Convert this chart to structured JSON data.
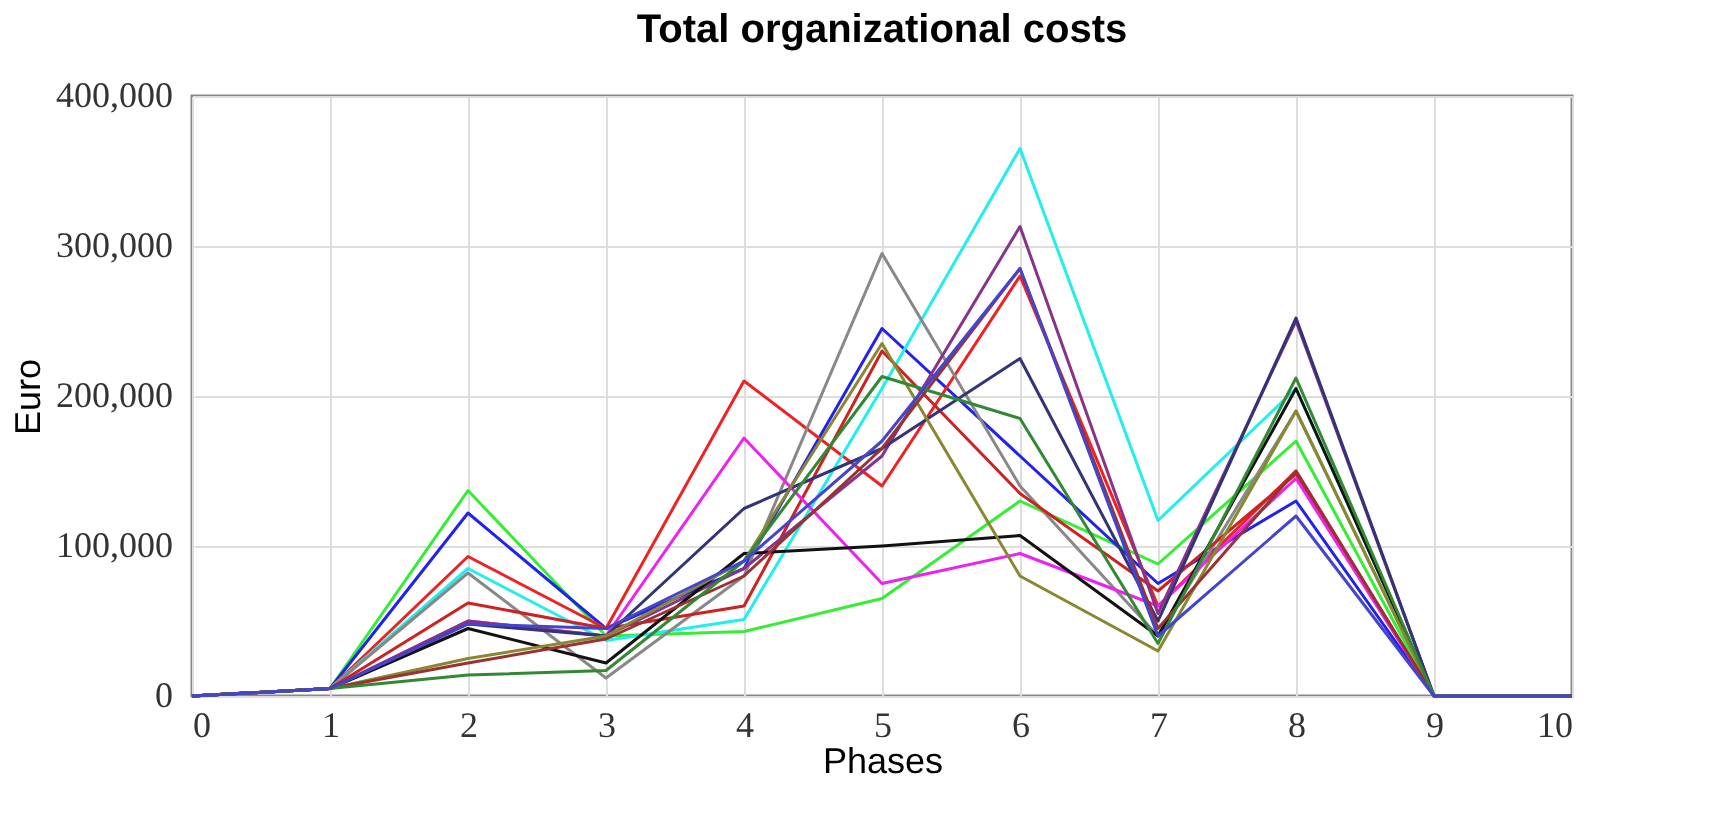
{
  "chart_data": {
    "type": "line",
    "title": "Total organizational costs",
    "xlabel": "Phases",
    "ylabel": "Euro",
    "x": [
      0,
      1,
      2,
      3,
      4,
      5,
      6,
      7,
      8,
      9,
      10
    ],
    "xlim": [
      0,
      10
    ],
    "xticks": [
      0,
      1,
      2,
      3,
      4,
      5,
      6,
      7,
      8,
      9,
      10
    ],
    "ylim": [
      0,
      400000
    ],
    "yticks": [
      0,
      {
        "value": 100000,
        "label": "100,000"
      },
      {
        "value": 200000,
        "label": "200,000"
      },
      {
        "value": 300000,
        "label": "300,000"
      },
      {
        "value": 400000,
        "label": "400,000"
      }
    ],
    "grid": true,
    "legend": false,
    "marker": "none",
    "line_style": "solid",
    "series": [
      {
        "color": "#33ee33",
        "values": [
          0,
          5000,
          137000,
          40000,
          43000,
          65000,
          130000,
          88000,
          170000,
          0,
          0
        ]
      },
      {
        "color": "#2222ee",
        "values": [
          0,
          5000,
          122000,
          45000,
          85000,
          245000,
          160000,
          75000,
          130000,
          0,
          0
        ]
      },
      {
        "color": "#ee2222",
        "values": [
          0,
          5000,
          93000,
          45000,
          210000,
          140000,
          280000,
          60000,
          150000,
          0,
          0
        ]
      },
      {
        "color": "#22eeee",
        "values": [
          0,
          5000,
          85000,
          37000,
          51000,
          205000,
          365000,
          117000,
          205000,
          0,
          0
        ]
      },
      {
        "color": "#888888",
        "values": [
          0,
          5000,
          82000,
          12000,
          80000,
          295000,
          140000,
          40000,
          190000,
          0,
          0
        ]
      },
      {
        "color": "#cc2222",
        "values": [
          0,
          5000,
          62000,
          45000,
          60000,
          230000,
          135000,
          70000,
          148000,
          0,
          0
        ]
      },
      {
        "color": "#ee22ee",
        "values": [
          0,
          5000,
          50000,
          40000,
          172000,
          75000,
          95000,
          60000,
          145000,
          0,
          0
        ]
      },
      {
        "color": "#883388",
        "values": [
          0,
          5000,
          50000,
          40000,
          85000,
          160000,
          313000,
          55000,
          250000,
          0,
          0
        ]
      },
      {
        "color": "#111111",
        "values": [
          0,
          5000,
          45000,
          22000,
          95000,
          100000,
          107000,
          40000,
          205000,
          0,
          0
        ]
      },
      {
        "color": "#333377",
        "values": [
          0,
          5000,
          48000,
          40000,
          125000,
          165000,
          225000,
          50000,
          252000,
          0,
          0
        ]
      },
      {
        "color": "#888833",
        "values": [
          0,
          5000,
          25000,
          40000,
          90000,
          235000,
          80000,
          30000,
          190000,
          0,
          0
        ]
      },
      {
        "color": "#993333",
        "values": [
          0,
          5000,
          22000,
          38000,
          80000,
          165000,
          285000,
          45000,
          150000,
          0,
          0
        ]
      },
      {
        "color": "#338833",
        "values": [
          0,
          5000,
          14000,
          17000,
          90000,
          213000,
          185000,
          35000,
          212000,
          0,
          0
        ]
      },
      {
        "color": "#4444cc",
        "values": [
          0,
          5000,
          48000,
          45000,
          90000,
          170000,
          285000,
          40000,
          120000,
          0,
          0
        ]
      }
    ]
  }
}
